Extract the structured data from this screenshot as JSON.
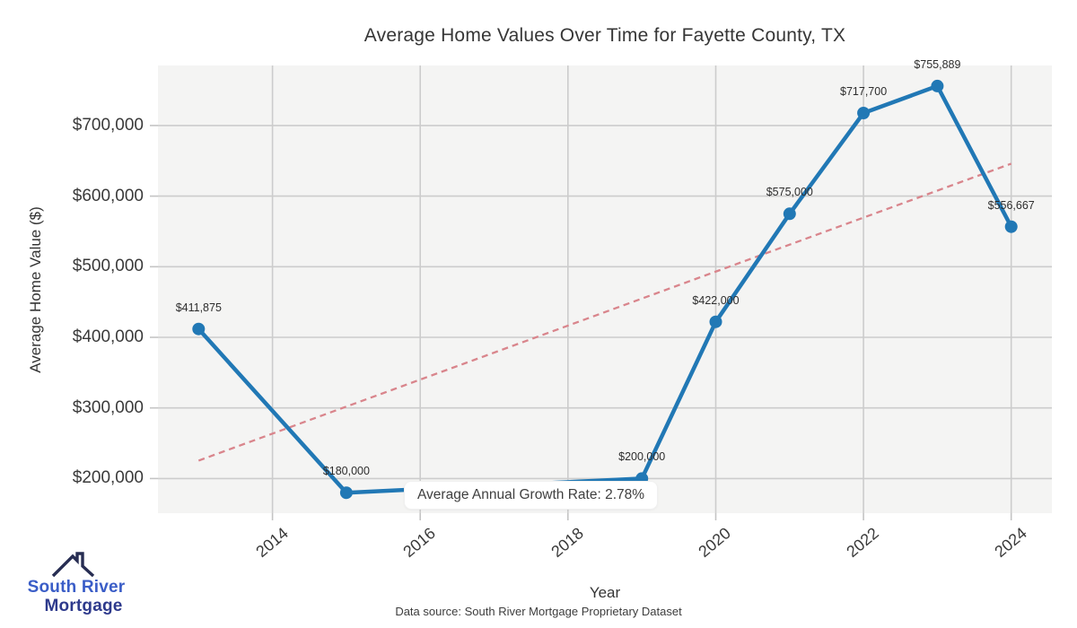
{
  "title": "Average Home Values Over Time for Fayette County, TX",
  "chart_data": {
    "type": "line",
    "title": "Average Home Values Over Time for Fayette County, TX",
    "xlabel": "Year",
    "ylabel": "Average Home Value ($)",
    "points": [
      {
        "year": 2013,
        "value": 411875,
        "label": "$411,875"
      },
      {
        "year": 2015,
        "value": 180000,
        "label": "$180,000"
      },
      {
        "year": 2019,
        "value": 200000,
        "label": "$200,000"
      },
      {
        "year": 2020,
        "value": 422000,
        "label": "$422,000"
      },
      {
        "year": 2021,
        "value": 575000,
        "label": "$575,000"
      },
      {
        "year": 2022,
        "value": 717700,
        "label": "$717,700"
      },
      {
        "year": 2023,
        "value": 755889,
        "label": "$755,889"
      },
      {
        "year": 2024,
        "value": 556667,
        "label": "$556,667"
      }
    ],
    "x_ticks": [
      2014,
      2016,
      2018,
      2020,
      2022,
      2024
    ],
    "x_tick_labels": [
      "2014",
      "2016",
      "2018",
      "2020",
      "2022",
      "2024"
    ],
    "y_ticks": [
      200000,
      300000,
      400000,
      500000,
      600000,
      700000
    ],
    "y_tick_labels": [
      "$200,000",
      "$300,000",
      "$400,000",
      "$500,000",
      "$600,000",
      "$700,000"
    ],
    "xlim": [
      2012.45,
      2024.55
    ],
    "ylim": [
      151000,
      785000
    ],
    "grid": true,
    "legend": false,
    "trend_line": {
      "x": [
        2013,
        2024
      ],
      "values": [
        225500,
        646000
      ],
      "style": "dashed"
    },
    "annotation": {
      "text": "Average Annual Growth Rate: 2.78%",
      "anchor_year": 2019,
      "anchor_value": 200000
    },
    "colors": {
      "line": "#2178b5",
      "marker": "#2178b5",
      "trend": "#d9858c",
      "grid": "#cccccc",
      "tick": "#c4c4c4",
      "plot_background": "#f4f4f3",
      "wedge": "#bdd9ee"
    }
  },
  "logo": {
    "line1": "South River",
    "line2": "Mortgage",
    "icon": "roof-with-chimney-icon",
    "color_primary": "#3a5dc7",
    "color_secondary": "#2e3a8c",
    "icon_color": "#272d52"
  },
  "footer": "Data source: South River Mortgage Proprietary Dataset"
}
